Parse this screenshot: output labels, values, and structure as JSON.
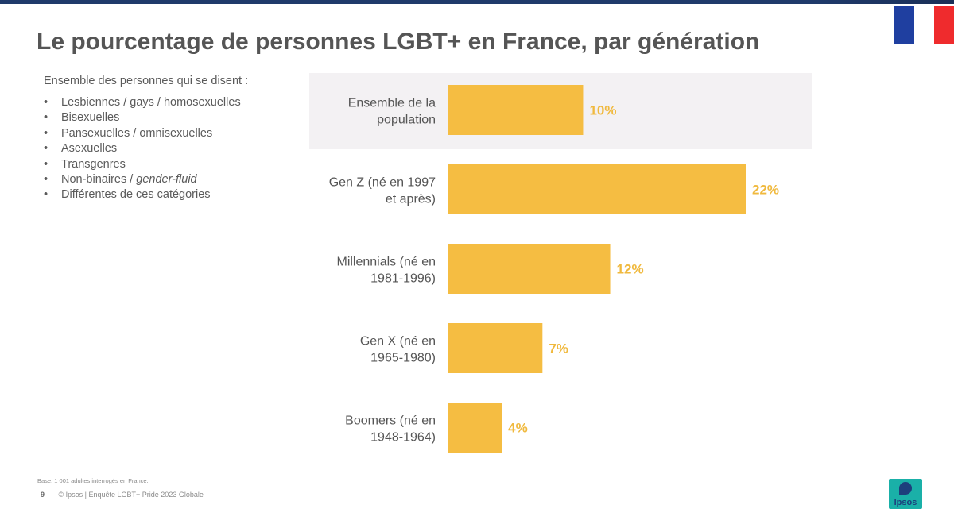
{
  "title": "Le pourcentage de personnes LGBT+ en France, par génération",
  "intro": "Ensemble des personnes qui se disent :",
  "bullets": [
    "Lesbiennes / gays / homosexuelles",
    "Bisexuelles",
    "Pansexuelles / omnisexuelles",
    "Asexuelles",
    "Transgenres",
    "Non-binaires / ",
    "Différentes de ces catégories"
  ],
  "bullet_italic": "gender-fluid",
  "bullet_marker": "•",
  "flag_colors": [
    "#1f3fa0",
    "#ffffff",
    "#ef2b2d"
  ],
  "chart_data": {
    "type": "bar",
    "orientation": "horizontal",
    "categories": [
      [
        "Ensemble de la",
        "population"
      ],
      [
        "Gen Z (né en 1997",
        "et après)"
      ],
      [
        "Millennials (né en",
        "1981-1996)"
      ],
      [
        "Gen X (né en",
        "1965-1980)"
      ],
      [
        "Boomers (né en",
        "1948-1964)"
      ]
    ],
    "values": [
      10,
      22,
      12,
      7,
      4
    ],
    "value_labels": [
      "10%",
      "22%",
      "12%",
      "7%",
      "4%"
    ],
    "highlighted_category": 0,
    "bar_color": "#f5bd42",
    "label_color": "#f0b93e",
    "highlight_color": "#f3f1f3",
    "xlim": [
      0,
      22
    ]
  },
  "footer": {
    "base": "Base: 1 001 adultes interrogés en France.",
    "page": "9 –",
    "source": "© Ipsos | Enquête LGBT+ Pride 2023 Globale"
  },
  "logo_text": "Ipsos"
}
